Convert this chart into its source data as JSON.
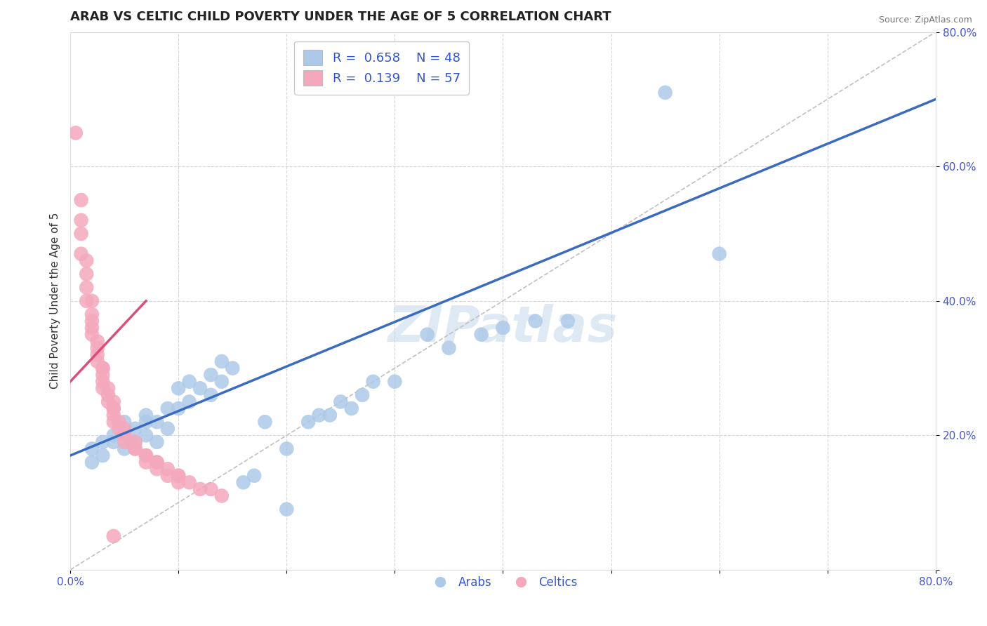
{
  "title": "ARAB VS CELTIC CHILD POVERTY UNDER THE AGE OF 5 CORRELATION CHART",
  "source": "Source: ZipAtlas.com",
  "ylabel": "Child Poverty Under the Age of 5",
  "xlim": [
    0.0,
    0.8
  ],
  "ylim": [
    0.0,
    0.8
  ],
  "watermark": "ZIPatlas",
  "legend_arab_R": "0.658",
  "legend_arab_N": "48",
  "legend_celtic_R": "0.139",
  "legend_celtic_N": "57",
  "arab_color": "#adc9e8",
  "celtic_color": "#f4a8bc",
  "arab_line_color": "#3a6bbf",
  "celtic_line_color": "#d94f7a",
  "arab_scatter": [
    [
      0.02,
      0.18
    ],
    [
      0.02,
      0.16
    ],
    [
      0.03,
      0.19
    ],
    [
      0.03,
      0.17
    ],
    [
      0.04,
      0.2
    ],
    [
      0.04,
      0.19
    ],
    [
      0.05,
      0.18
    ],
    [
      0.05,
      0.22
    ],
    [
      0.06,
      0.19
    ],
    [
      0.06,
      0.21
    ],
    [
      0.07,
      0.2
    ],
    [
      0.07,
      0.22
    ],
    [
      0.07,
      0.23
    ],
    [
      0.08,
      0.22
    ],
    [
      0.08,
      0.19
    ],
    [
      0.09,
      0.24
    ],
    [
      0.09,
      0.21
    ],
    [
      0.1,
      0.24
    ],
    [
      0.1,
      0.27
    ],
    [
      0.11,
      0.25
    ],
    [
      0.11,
      0.28
    ],
    [
      0.12,
      0.27
    ],
    [
      0.13,
      0.26
    ],
    [
      0.13,
      0.29
    ],
    [
      0.14,
      0.28
    ],
    [
      0.14,
      0.31
    ],
    [
      0.15,
      0.3
    ],
    [
      0.16,
      0.13
    ],
    [
      0.17,
      0.14
    ],
    [
      0.18,
      0.22
    ],
    [
      0.2,
      0.09
    ],
    [
      0.2,
      0.18
    ],
    [
      0.22,
      0.22
    ],
    [
      0.23,
      0.23
    ],
    [
      0.24,
      0.23
    ],
    [
      0.25,
      0.25
    ],
    [
      0.26,
      0.24
    ],
    [
      0.27,
      0.26
    ],
    [
      0.28,
      0.28
    ],
    [
      0.3,
      0.28
    ],
    [
      0.33,
      0.35
    ],
    [
      0.35,
      0.33
    ],
    [
      0.38,
      0.35
    ],
    [
      0.4,
      0.36
    ],
    [
      0.43,
      0.37
    ],
    [
      0.46,
      0.37
    ],
    [
      0.55,
      0.71
    ],
    [
      0.6,
      0.47
    ]
  ],
  "celtic_scatter": [
    [
      0.005,
      0.65
    ],
    [
      0.01,
      0.55
    ],
    [
      0.01,
      0.52
    ],
    [
      0.01,
      0.5
    ],
    [
      0.01,
      0.47
    ],
    [
      0.015,
      0.46
    ],
    [
      0.015,
      0.44
    ],
    [
      0.015,
      0.42
    ],
    [
      0.015,
      0.4
    ],
    [
      0.02,
      0.4
    ],
    [
      0.02,
      0.38
    ],
    [
      0.02,
      0.37
    ],
    [
      0.02,
      0.36
    ],
    [
      0.02,
      0.35
    ],
    [
      0.025,
      0.34
    ],
    [
      0.025,
      0.33
    ],
    [
      0.025,
      0.32
    ],
    [
      0.025,
      0.31
    ],
    [
      0.03,
      0.3
    ],
    [
      0.03,
      0.3
    ],
    [
      0.03,
      0.29
    ],
    [
      0.03,
      0.28
    ],
    [
      0.03,
      0.27
    ],
    [
      0.035,
      0.27
    ],
    [
      0.035,
      0.26
    ],
    [
      0.035,
      0.25
    ],
    [
      0.04,
      0.25
    ],
    [
      0.04,
      0.24
    ],
    [
      0.04,
      0.24
    ],
    [
      0.04,
      0.23
    ],
    [
      0.04,
      0.22
    ],
    [
      0.04,
      0.05
    ],
    [
      0.045,
      0.22
    ],
    [
      0.045,
      0.21
    ],
    [
      0.05,
      0.21
    ],
    [
      0.05,
      0.2
    ],
    [
      0.05,
      0.2
    ],
    [
      0.05,
      0.19
    ],
    [
      0.055,
      0.19
    ],
    [
      0.06,
      0.19
    ],
    [
      0.06,
      0.18
    ],
    [
      0.06,
      0.18
    ],
    [
      0.07,
      0.17
    ],
    [
      0.07,
      0.17
    ],
    [
      0.07,
      0.16
    ],
    [
      0.08,
      0.16
    ],
    [
      0.08,
      0.16
    ],
    [
      0.08,
      0.15
    ],
    [
      0.09,
      0.15
    ],
    [
      0.09,
      0.14
    ],
    [
      0.1,
      0.14
    ],
    [
      0.1,
      0.14
    ],
    [
      0.1,
      0.13
    ],
    [
      0.11,
      0.13
    ],
    [
      0.12,
      0.12
    ],
    [
      0.13,
      0.12
    ],
    [
      0.14,
      0.11
    ]
  ],
  "background_color": "#ffffff",
  "grid_color": "#cccccc",
  "title_fontsize": 13,
  "axis_fontsize": 11,
  "tick_fontsize": 11
}
